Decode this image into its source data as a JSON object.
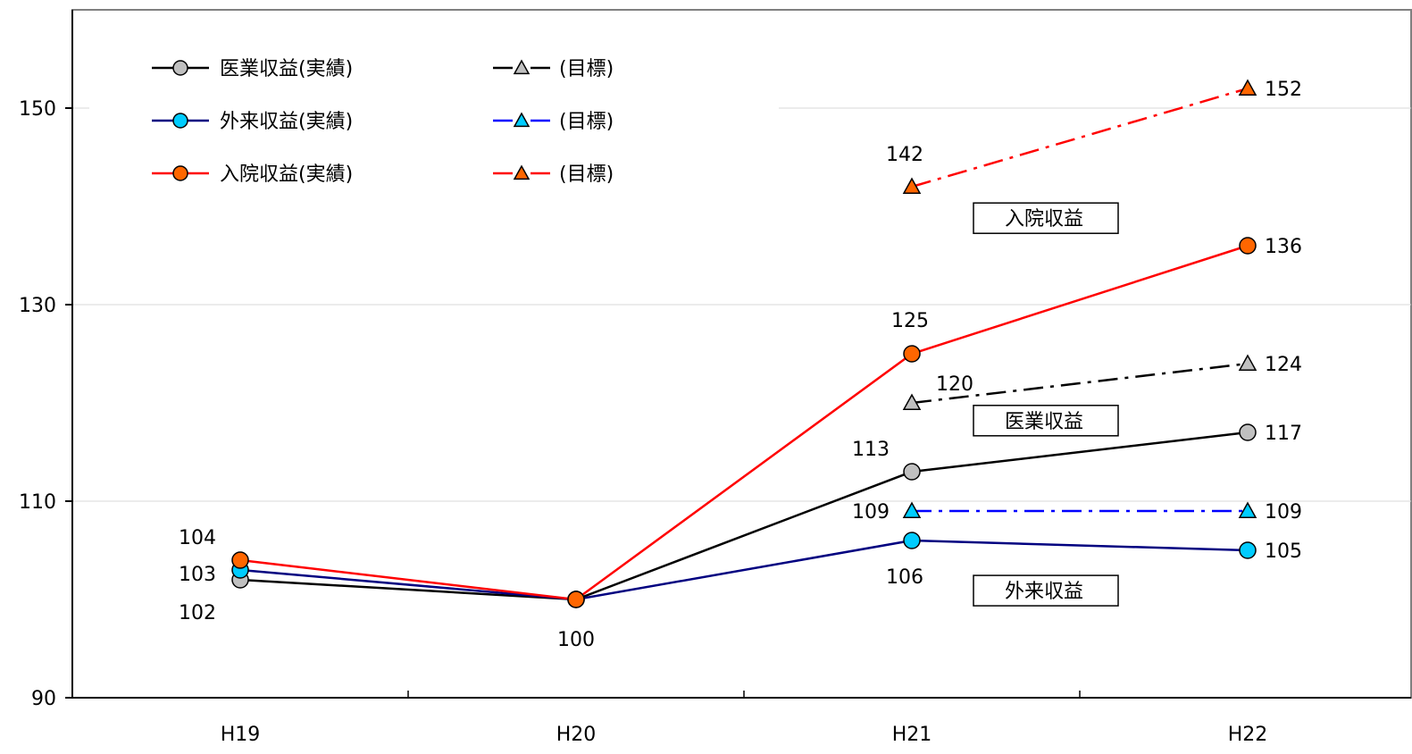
{
  "chart_data": {
    "type": "line",
    "categories": [
      "H19",
      "H20",
      "H21",
      "H22"
    ],
    "ylim": [
      90,
      160
    ],
    "y_ticks": [
      90,
      110,
      130,
      150
    ],
    "grid": true,
    "legend_position": "top-left",
    "series": [
      {
        "name": "医業収益(実績)",
        "values": [
          102,
          100,
          113,
          117
        ],
        "color": "#000000",
        "marker": "circle",
        "marker_color": "#c0c0c0",
        "dash": "solid",
        "labels": [
          "102",
          "100",
          "113",
          "117"
        ]
      },
      {
        "name": "外来収益(実績)",
        "values": [
          103,
          100,
          106,
          105
        ],
        "color": "#000080",
        "marker": "circle",
        "marker_color": "#00ccff",
        "dash": "solid",
        "labels": [
          "103",
          "",
          "106",
          "105"
        ]
      },
      {
        "name": "入院収益(実績)",
        "values": [
          104,
          100,
          125,
          136
        ],
        "color": "#ff0000",
        "marker": "circle",
        "marker_color": "#ff6600",
        "dash": "solid",
        "labels": [
          "104",
          "",
          "125",
          "136"
        ]
      },
      {
        "name": "(目標)",
        "values": [
          null,
          null,
          120,
          124
        ],
        "color": "#000000",
        "marker": "triangle",
        "marker_color": "#c0c0c0",
        "dash": "dashdot",
        "labels": [
          "",
          "",
          "120",
          "124"
        ]
      },
      {
        "name": "(目標)",
        "values": [
          null,
          null,
          109,
          109
        ],
        "color": "#0000ff",
        "marker": "triangle",
        "marker_color": "#00ccff",
        "dash": "dashdot",
        "labels": [
          "",
          "",
          "109",
          "109"
        ]
      },
      {
        "name": "(目標)",
        "values": [
          null,
          null,
          142,
          152
        ],
        "color": "#ff0000",
        "marker": "triangle",
        "marker_color": "#ff6600",
        "dash": "dashdot",
        "labels": [
          "",
          "",
          "142",
          "152"
        ]
      }
    ],
    "annotations": [
      {
        "text": "入院収益",
        "x": "H21",
        "y": 138.8
      },
      {
        "text": "医業収益",
        "x": "H21",
        "y": 118.2
      },
      {
        "text": "外来収益",
        "x": "H21",
        "y": 100.9
      }
    ]
  }
}
